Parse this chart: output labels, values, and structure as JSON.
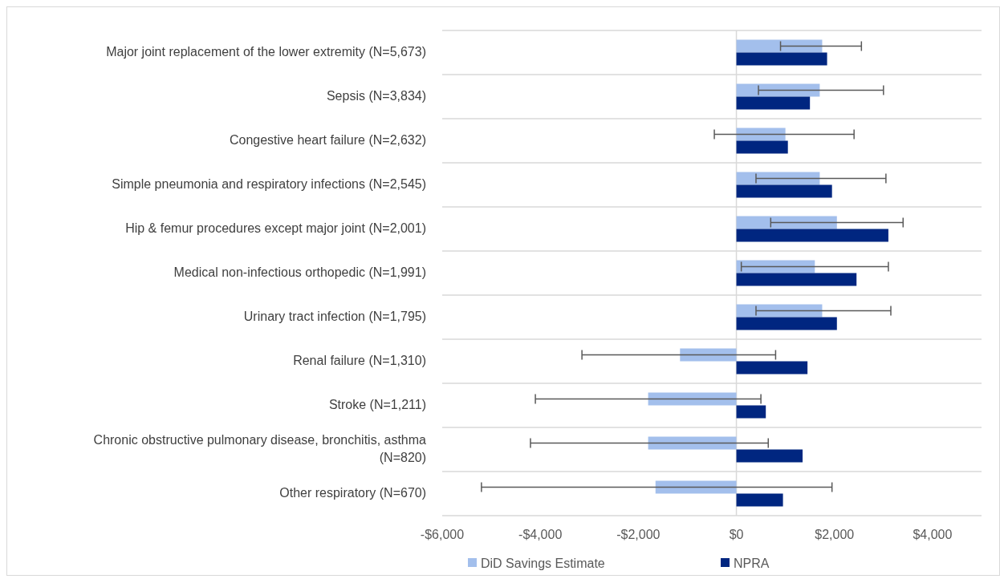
{
  "chart_data": {
    "type": "bar",
    "orientation": "horizontal",
    "categories": [
      "Major joint replacement of the lower extremity (N=5,673)",
      "Sepsis (N=3,834)",
      "Congestive heart failure (N=2,632)",
      "Simple pneumonia and respiratory infections (N=2,545)",
      "Hip & femur procedures except major joint (N=2,001)",
      "Medical non-infectious orthopedic (N=1,991)",
      "Urinary tract infection (N=1,795)",
      "Renal failure (N=1,310)",
      "Stroke (N=1,211)",
      "Chronic obstructive pulmonary disease, bronchitis, asthma (N=820)",
      "Other respiratory (N=670)"
    ],
    "series": [
      {
        "name": "DiD Savings Estimate",
        "color": "#a3bfec",
        "values": [
          1750,
          1700,
          1000,
          1700,
          2050,
          1600,
          1750,
          -1150,
          -1800,
          -1800,
          -1650
        ],
        "errors": [
          [
            900,
            2550
          ],
          [
            450,
            3000
          ],
          [
            -450,
            2400
          ],
          [
            400,
            3050
          ],
          [
            700,
            3400
          ],
          [
            100,
            3100
          ],
          [
            400,
            3150
          ],
          [
            -3150,
            800
          ],
          [
            -4100,
            500
          ],
          [
            -4200,
            650
          ],
          [
            -5200,
            1950
          ]
        ]
      },
      {
        "name": "NPRA",
        "color": "#002680",
        "values": [
          1850,
          1500,
          1050,
          1950,
          3100,
          2450,
          2050,
          1450,
          600,
          1350,
          950
        ]
      }
    ],
    "xlim": [
      -6000,
      5000
    ],
    "xticks": [
      {
        "value": -6000,
        "label": "-$6,000"
      },
      {
        "value": -4000,
        "label": "-$4,000"
      },
      {
        "value": -2000,
        "label": "-$2,000"
      },
      {
        "value": 0,
        "label": "$0"
      },
      {
        "value": 2000,
        "label": "$2,000"
      },
      {
        "value": 4000,
        "label": "$4,000"
      }
    ],
    "ref_lines": [
      {
        "axis": "x",
        "value": 0,
        "color": "#d9d9d9"
      }
    ],
    "grid": "y",
    "legend": "bottom"
  }
}
